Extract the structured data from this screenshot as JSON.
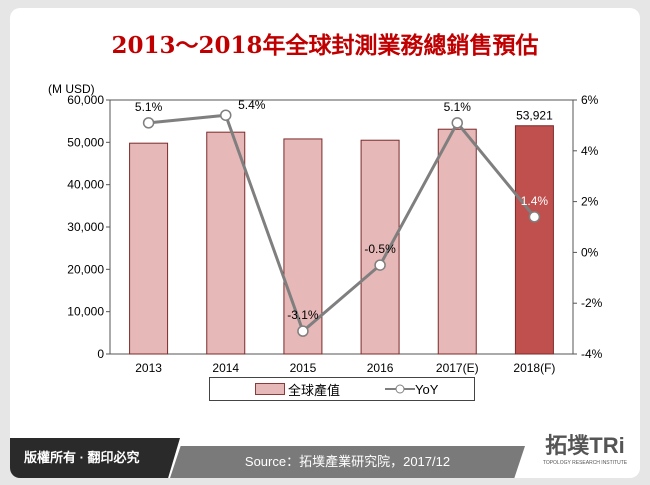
{
  "title": "2013～2018年全球封測業務總銷售預估",
  "chart_data": {
    "type": "bar+line",
    "title": "2013～2018年全球封測業務總銷售預估",
    "categories": [
      "2013",
      "2014",
      "2015",
      "2016",
      "2017(E)",
      "2018(F)"
    ],
    "series": [
      {
        "name": "全球產值",
        "type": "bar",
        "axis": "left",
        "values": [
          49800,
          52400,
          50800,
          50500,
          53100,
          53921
        ],
        "colors": [
          "#e6b8b7",
          "#e6b8b7",
          "#e6b8b7",
          "#e6b8b7",
          "#e6b8b7",
          "#c0504d"
        ]
      },
      {
        "name": "YoY",
        "type": "line",
        "axis": "right",
        "values": [
          5.1,
          5.4,
          -3.1,
          -0.5,
          5.1,
          1.4
        ],
        "color": "#7f7f7f"
      }
    ],
    "data_labels": {
      "bar": {
        "5": "53,921"
      },
      "line": [
        "5.1%",
        "5.4%",
        "-3.1%",
        "-0.5%",
        "5.1%",
        "1.4%"
      ]
    },
    "ylabel": "(M USD)",
    "ylim": [
      0,
      60000
    ],
    "yticks": [
      "0",
      "10,000",
      "20,000",
      "30,000",
      "40,000",
      "50,000",
      "60,000"
    ],
    "y2lim": [
      -4,
      6
    ],
    "y2ticks": [
      "-4%",
      "-2%",
      "0%",
      "2%",
      "4%",
      "6%"
    ],
    "grid": false,
    "legend": "bottom"
  },
  "legend": {
    "bar": "全球產值",
    "line": "YoY"
  },
  "footer": {
    "copyright": "版權所有 · 翻印必究",
    "source": "Source：拓墣產業研究院，2017/12",
    "logo": "拓墣TRi",
    "logo_sub": "TOPOLOGY RESEARCH INSTITUTE"
  }
}
